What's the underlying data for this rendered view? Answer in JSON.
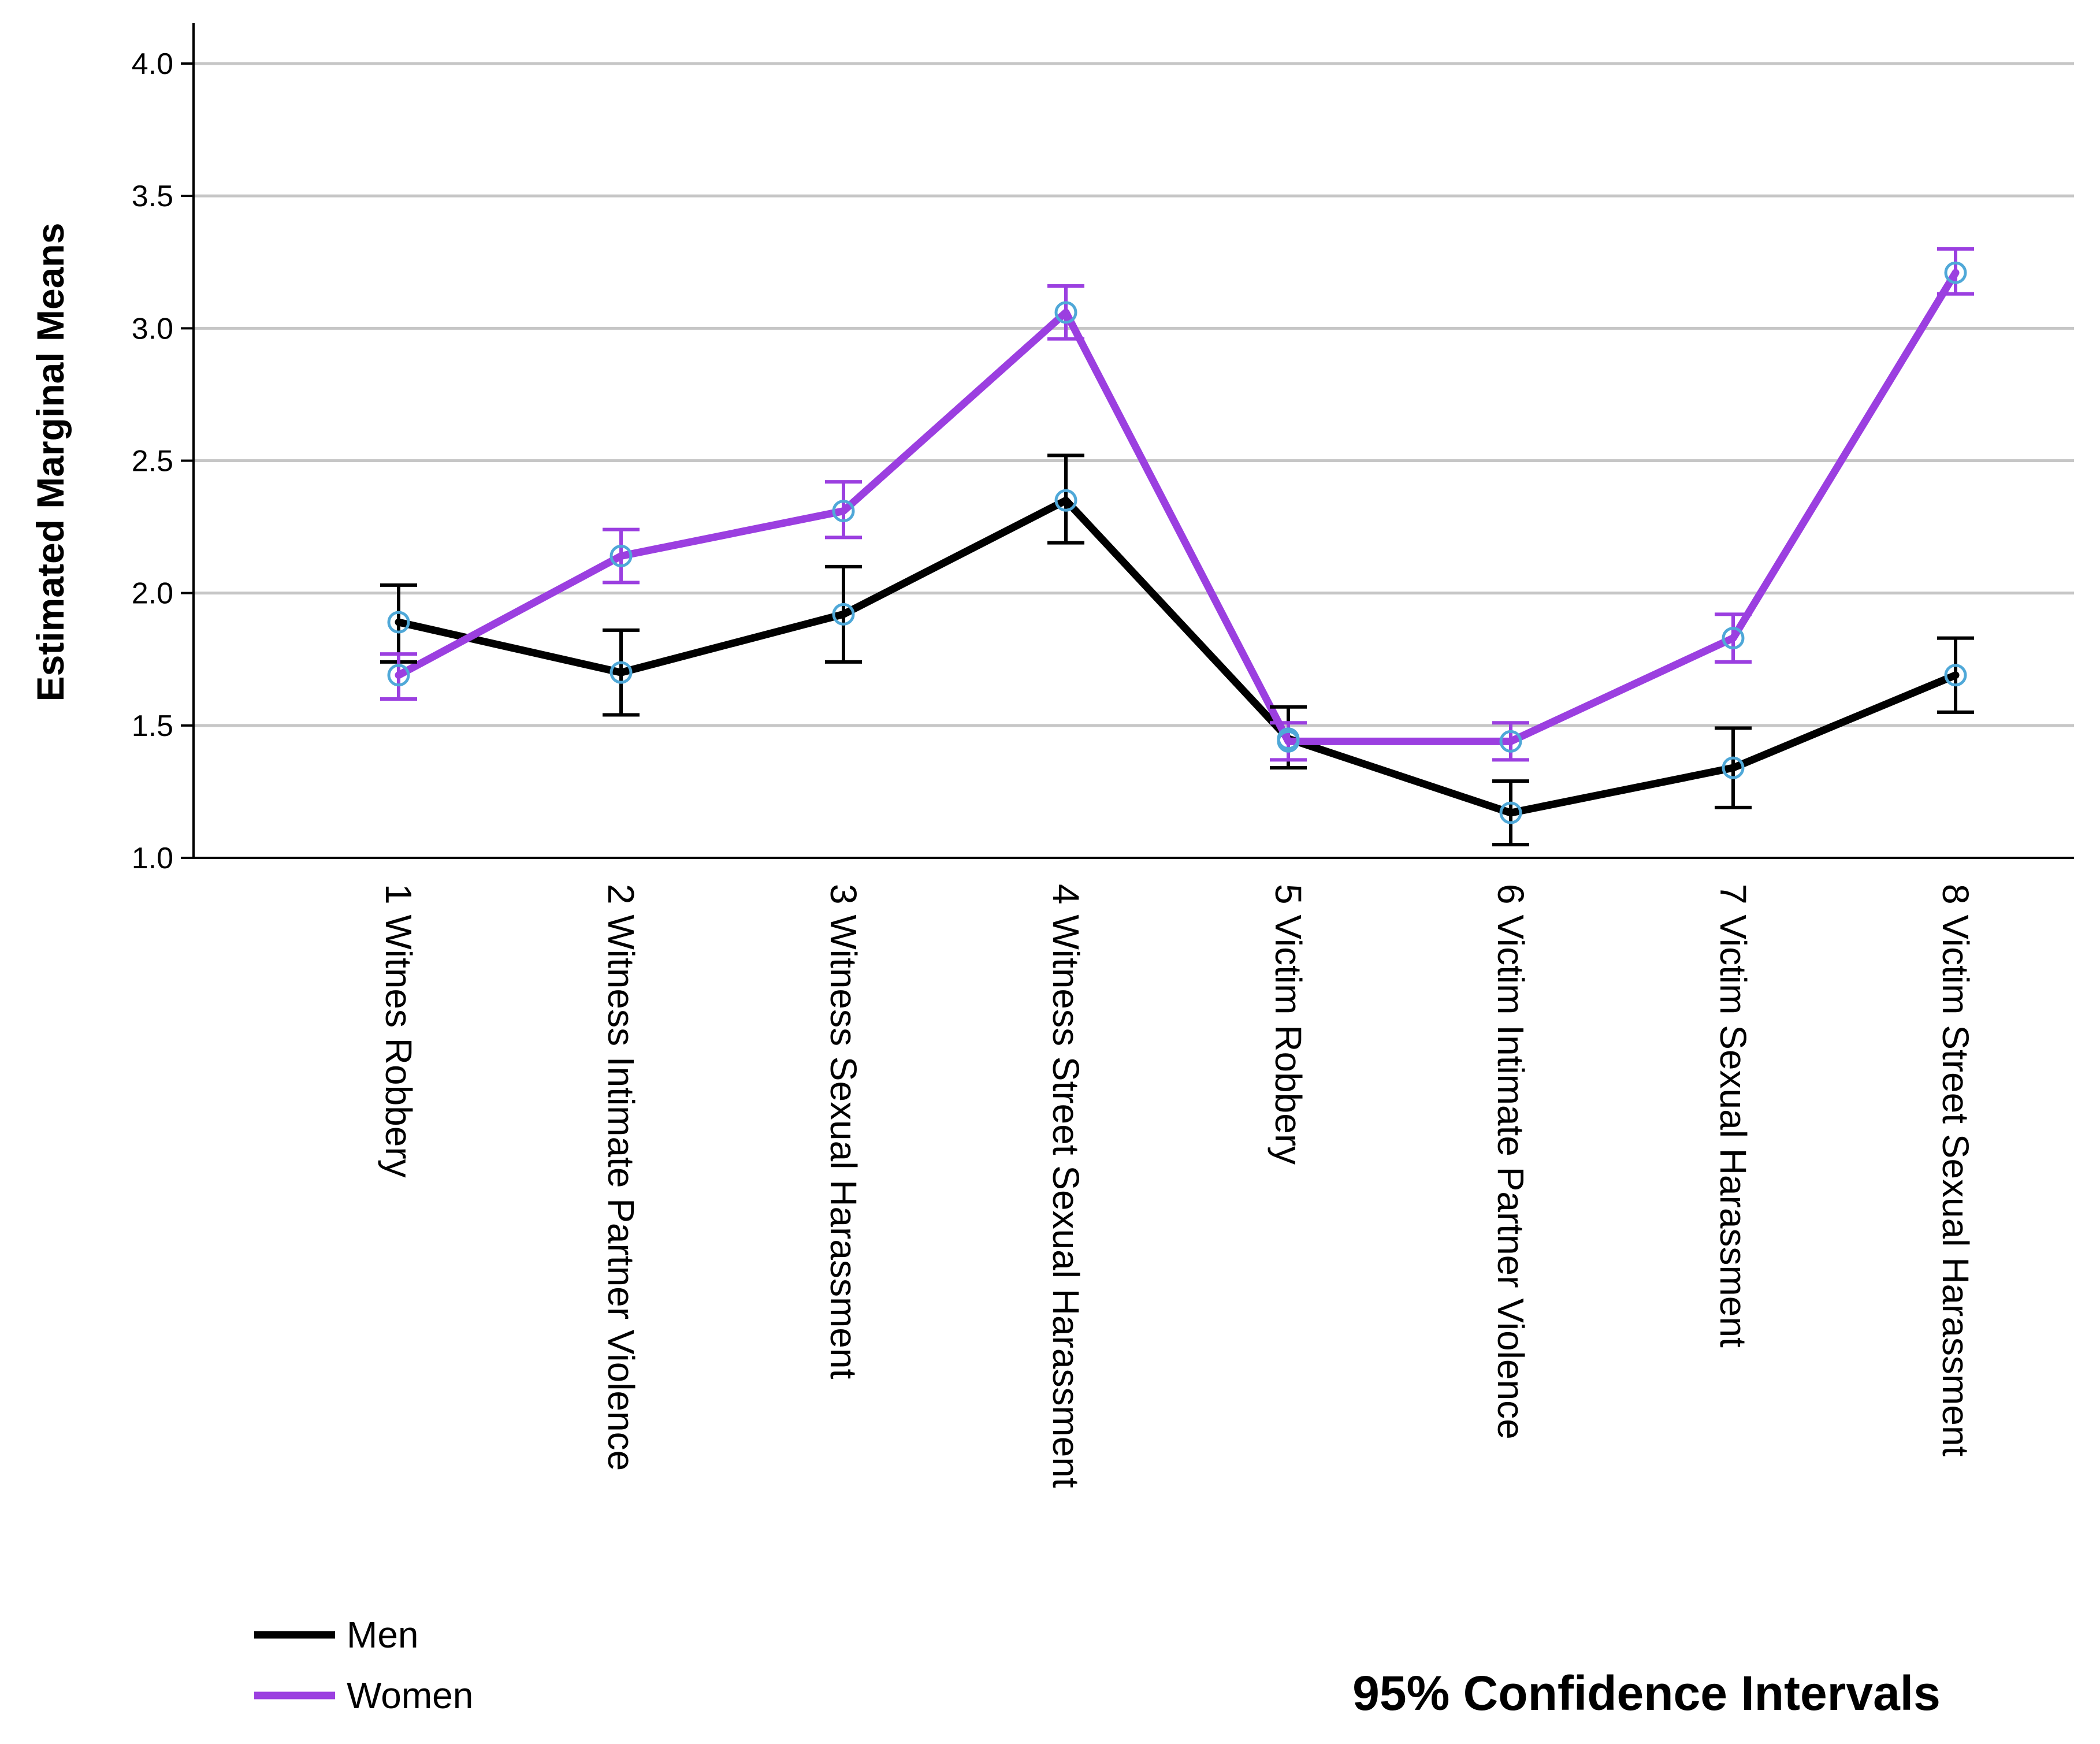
{
  "chart_data": {
    "type": "line",
    "title": "",
    "xlabel": "",
    "ylabel": "Estimated Marginal Means",
    "ylim": [
      1.0,
      4.0
    ],
    "yticks": [
      1.0,
      1.5,
      2.0,
      2.5,
      3.0,
      3.5,
      4.0
    ],
    "ytick_labels": [
      "1.0",
      "1.5",
      "2.0",
      "2.5",
      "3.0",
      "3.5",
      "4.0"
    ],
    "grid": true,
    "categories": [
      "1 Witnes Robbery",
      "2 Witness Intimate Partner Violence",
      "3 Witness Sexual Harassment",
      "4 Witness Street Sexual Harassment",
      "5 Victim Robbery",
      "6 Victim Intimate Partner Violence",
      "7 Victim Sexual Harassment",
      "8 Victim Street Sexual Harassment"
    ],
    "series": [
      {
        "name": "Men",
        "color": "#000000",
        "values": [
          1.89,
          1.7,
          1.92,
          2.35,
          1.45,
          1.17,
          1.34,
          1.69
        ],
        "ci_lower": [
          1.74,
          1.54,
          1.74,
          2.19,
          1.34,
          1.05,
          1.19,
          1.55
        ],
        "ci_upper": [
          2.03,
          1.86,
          2.1,
          2.52,
          1.57,
          1.29,
          1.49,
          1.83
        ]
      },
      {
        "name": "Women",
        "color": "#9b3fe0",
        "values": [
          1.69,
          2.14,
          2.31,
          3.06,
          1.44,
          1.44,
          1.83,
          3.21
        ],
        "ci_lower": [
          1.6,
          2.04,
          2.21,
          2.96,
          1.37,
          1.37,
          1.74,
          3.13
        ],
        "ci_upper": [
          1.77,
          2.24,
          2.42,
          3.16,
          1.51,
          1.51,
          1.92,
          3.3
        ]
      }
    ],
    "marker_color": "#4fa8d8",
    "legend_position": "bottom-left",
    "annotation": "95% Confidence Intervals"
  }
}
